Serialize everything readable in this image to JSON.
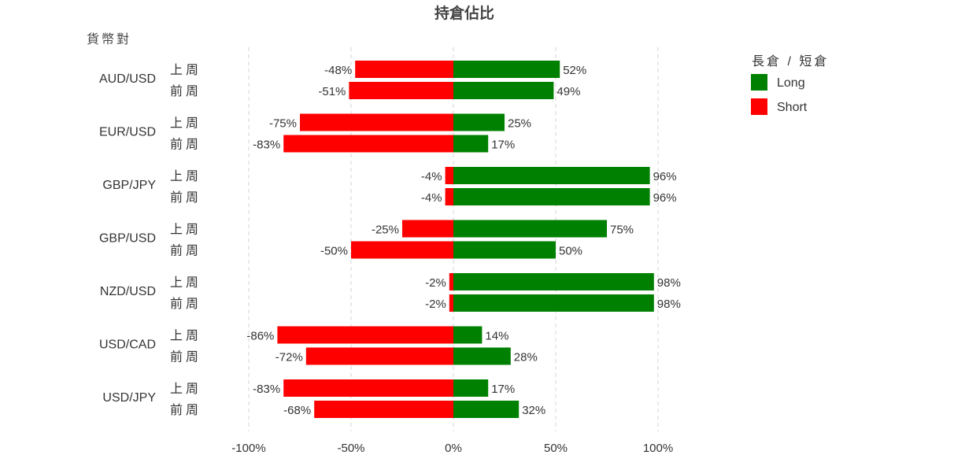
{
  "chart_data": {
    "type": "bar",
    "orientation": "horizontal-diverging",
    "title": "持倉佔比",
    "ylabel": "貨幣對",
    "legend": {
      "title": "長倉 / 短倉",
      "placement": "top-right",
      "items": [
        {
          "name": "Long",
          "color": "#008000"
        },
        {
          "name": "Short",
          "color": "#ff0000"
        }
      ]
    },
    "xlim": [
      -100,
      100
    ],
    "x_ticks": [
      -100,
      -50,
      0,
      50,
      100
    ],
    "x_tick_labels": [
      "-100%",
      "-50%",
      "0%",
      "50%",
      "100%"
    ],
    "grid": "vertical-dashed",
    "period_labels": [
      "上周",
      "前周"
    ],
    "categories": [
      "AUD/USD",
      "EUR/USD",
      "GBP/JPY",
      "GBP/USD",
      "NZD/USD",
      "USD/CAD",
      "USD/JPY"
    ],
    "series": [
      {
        "name": "Long",
        "color": "#008000",
        "values": [
          [
            52,
            49
          ],
          [
            25,
            17
          ],
          [
            96,
            96
          ],
          [
            75,
            50
          ],
          [
            98,
            98
          ],
          [
            14,
            28
          ],
          [
            17,
            32
          ]
        ],
        "labels": [
          [
            "52%",
            "49%"
          ],
          [
            "25%",
            "17%"
          ],
          [
            "96%",
            "96%"
          ],
          [
            "75%",
            "50%"
          ],
          [
            "98%",
            "98%"
          ],
          [
            "14%",
            "28%"
          ],
          [
            "17%",
            "32%"
          ]
        ]
      },
      {
        "name": "Short",
        "color": "#ff0000",
        "values": [
          [
            -48,
            -51
          ],
          [
            -75,
            -83
          ],
          [
            -4,
            -4
          ],
          [
            -25,
            -50
          ],
          [
            -2,
            -2
          ],
          [
            -86,
            -72
          ],
          [
            -83,
            -68
          ]
        ],
        "labels": [
          [
            "-48%",
            "-51%"
          ],
          [
            "-75%",
            "-83%"
          ],
          [
            "-4%",
            "-4%"
          ],
          [
            "-25%",
            "-50%"
          ],
          [
            "-2%",
            "-2%"
          ],
          [
            "-86%",
            "-72%"
          ],
          [
            "-83%",
            "-68%"
          ]
        ]
      }
    ]
  }
}
